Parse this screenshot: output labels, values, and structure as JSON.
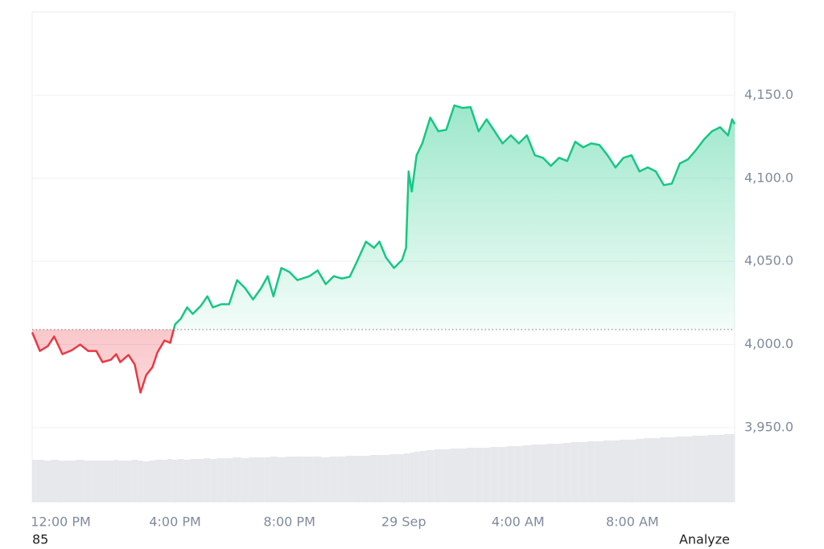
{
  "chart_data": {
    "type": "line",
    "x": [
      11.0,
      11.27,
      11.55,
      11.77,
      12.06,
      12.39,
      12.68,
      12.96,
      13.24,
      13.46,
      13.75,
      13.94,
      14.08,
      14.37,
      14.59,
      14.79,
      14.99,
      15.21,
      15.38,
      15.63,
      15.83,
      16.0,
      16.2,
      16.42,
      16.62,
      16.9,
      17.13,
      17.32,
      17.61,
      17.89,
      18.17,
      18.45,
      18.73,
      19.01,
      19.24,
      19.44,
      19.72,
      20.0,
      20.28,
      20.7,
      20.99,
      21.27,
      21.55,
      21.83,
      22.11,
      22.39,
      22.68,
      22.96,
      23.15,
      23.38,
      23.66,
      23.94,
      24.08,
      24.17,
      24.28,
      24.45,
      24.65,
      24.93,
      25.21,
      25.49,
      25.77,
      26.06,
      26.34,
      26.62,
      26.9,
      27.18,
      27.46,
      27.75,
      28.03,
      28.31,
      28.59,
      28.87,
      29.15,
      29.44,
      29.72,
      30.0,
      30.28,
      30.56,
      30.85,
      31.13,
      31.41,
      31.69,
      31.97,
      32.25,
      32.54,
      32.82,
      33.1,
      33.38,
      33.66,
      33.94,
      34.23,
      34.51,
      34.79,
      35.07,
      35.35,
      35.49,
      35.58
    ],
    "values": [
      4007.3,
      3996.1,
      3999.0,
      4004.8,
      3994.2,
      3996.6,
      4000.0,
      3996.1,
      3996.1,
      3989.4,
      3990.8,
      3994.2,
      3989.4,
      3993.7,
      3987.9,
      3971.0,
      3981.6,
      3986.4,
      3995.2,
      4002.4,
      4001.0,
      4012.1,
      4015.5,
      4022.3,
      4018.4,
      4023.2,
      4029.0,
      4022.3,
      4024.2,
      4024.2,
      4038.7,
      4033.9,
      4027.1,
      4033.9,
      4041.1,
      4029.0,
      4046.0,
      4043.6,
      4038.7,
      4041.1,
      4044.5,
      4036.3,
      4041.1,
      4039.7,
      4040.7,
      4050.8,
      4061.9,
      4058.1,
      4061.9,
      4052.3,
      4046.0,
      4050.8,
      4058.1,
      4104.1,
      4092.0,
      4113.8,
      4121.0,
      4136.5,
      4128.3,
      4129.2,
      4143.8,
      4142.3,
      4142.8,
      4128.3,
      4135.5,
      4128.3,
      4121.0,
      4125.8,
      4121.0,
      4125.8,
      4113.8,
      4112.3,
      4107.5,
      4112.3,
      4110.4,
      4122.0,
      4118.6,
      4121.0,
      4120.0,
      4113.8,
      4106.5,
      4112.3,
      4113.8,
      4104.1,
      4106.5,
      4104.1,
      4095.9,
      4096.8,
      4108.9,
      4111.3,
      4117.1,
      4123.4,
      4128.3,
      4130.7,
      4125.8,
      4135.5,
      4132.6
    ],
    "volume": [
      53,
      53,
      52,
      53,
      52,
      52,
      53,
      52,
      52,
      52,
      52,
      53,
      52,
      52,
      53,
      52,
      51,
      52,
      53,
      53,
      54,
      53,
      54,
      53,
      54,
      54,
      55,
      54,
      55,
      55,
      56,
      55,
      56,
      56,
      56,
      57,
      56,
      57,
      57,
      57,
      57,
      56,
      57,
      57,
      58,
      58,
      58,
      59,
      59,
      59,
      60,
      60,
      61,
      61,
      62,
      63,
      64,
      65,
      66,
      66,
      67,
      67,
      68,
      68,
      68,
      69,
      69,
      70,
      70,
      71,
      72,
      72,
      73,
      73,
      74,
      75,
      75,
      76,
      76,
      77,
      77,
      78,
      78,
      79,
      80,
      80,
      81,
      81,
      82,
      82,
      83,
      83,
      84,
      84,
      85,
      85,
      85
    ],
    "volume_lim": [
      0,
      100
    ],
    "baseline": 4009,
    "up_color": "#16c784",
    "down_color": "#ea3943",
    "volume_color": "#e6e8ec",
    "xlim": [
      11.0,
      35.58
    ],
    "ylim": [
      3905,
      4200
    ],
    "xticks": [
      {
        "value": 12,
        "label": "12:00 PM"
      },
      {
        "value": 16,
        "label": "4:00 PM"
      },
      {
        "value": 20,
        "label": "8:00 PM"
      },
      {
        "value": 24,
        "label": "29 Sep"
      },
      {
        "value": 28,
        "label": "4:00 AM"
      },
      {
        "value": 32,
        "label": "8:00 AM"
      }
    ],
    "yticks": [
      {
        "value": 3950,
        "label": "3,950.0"
      },
      {
        "value": 4000,
        "label": "4,000.0"
      },
      {
        "value": 4050,
        "label": "4,050.0"
      },
      {
        "value": 4100,
        "label": "4,100.0"
      },
      {
        "value": 4150,
        "label": "4,150.0"
      }
    ],
    "grid": true
  },
  "footer": {
    "left": "85",
    "right": "Analyze"
  }
}
